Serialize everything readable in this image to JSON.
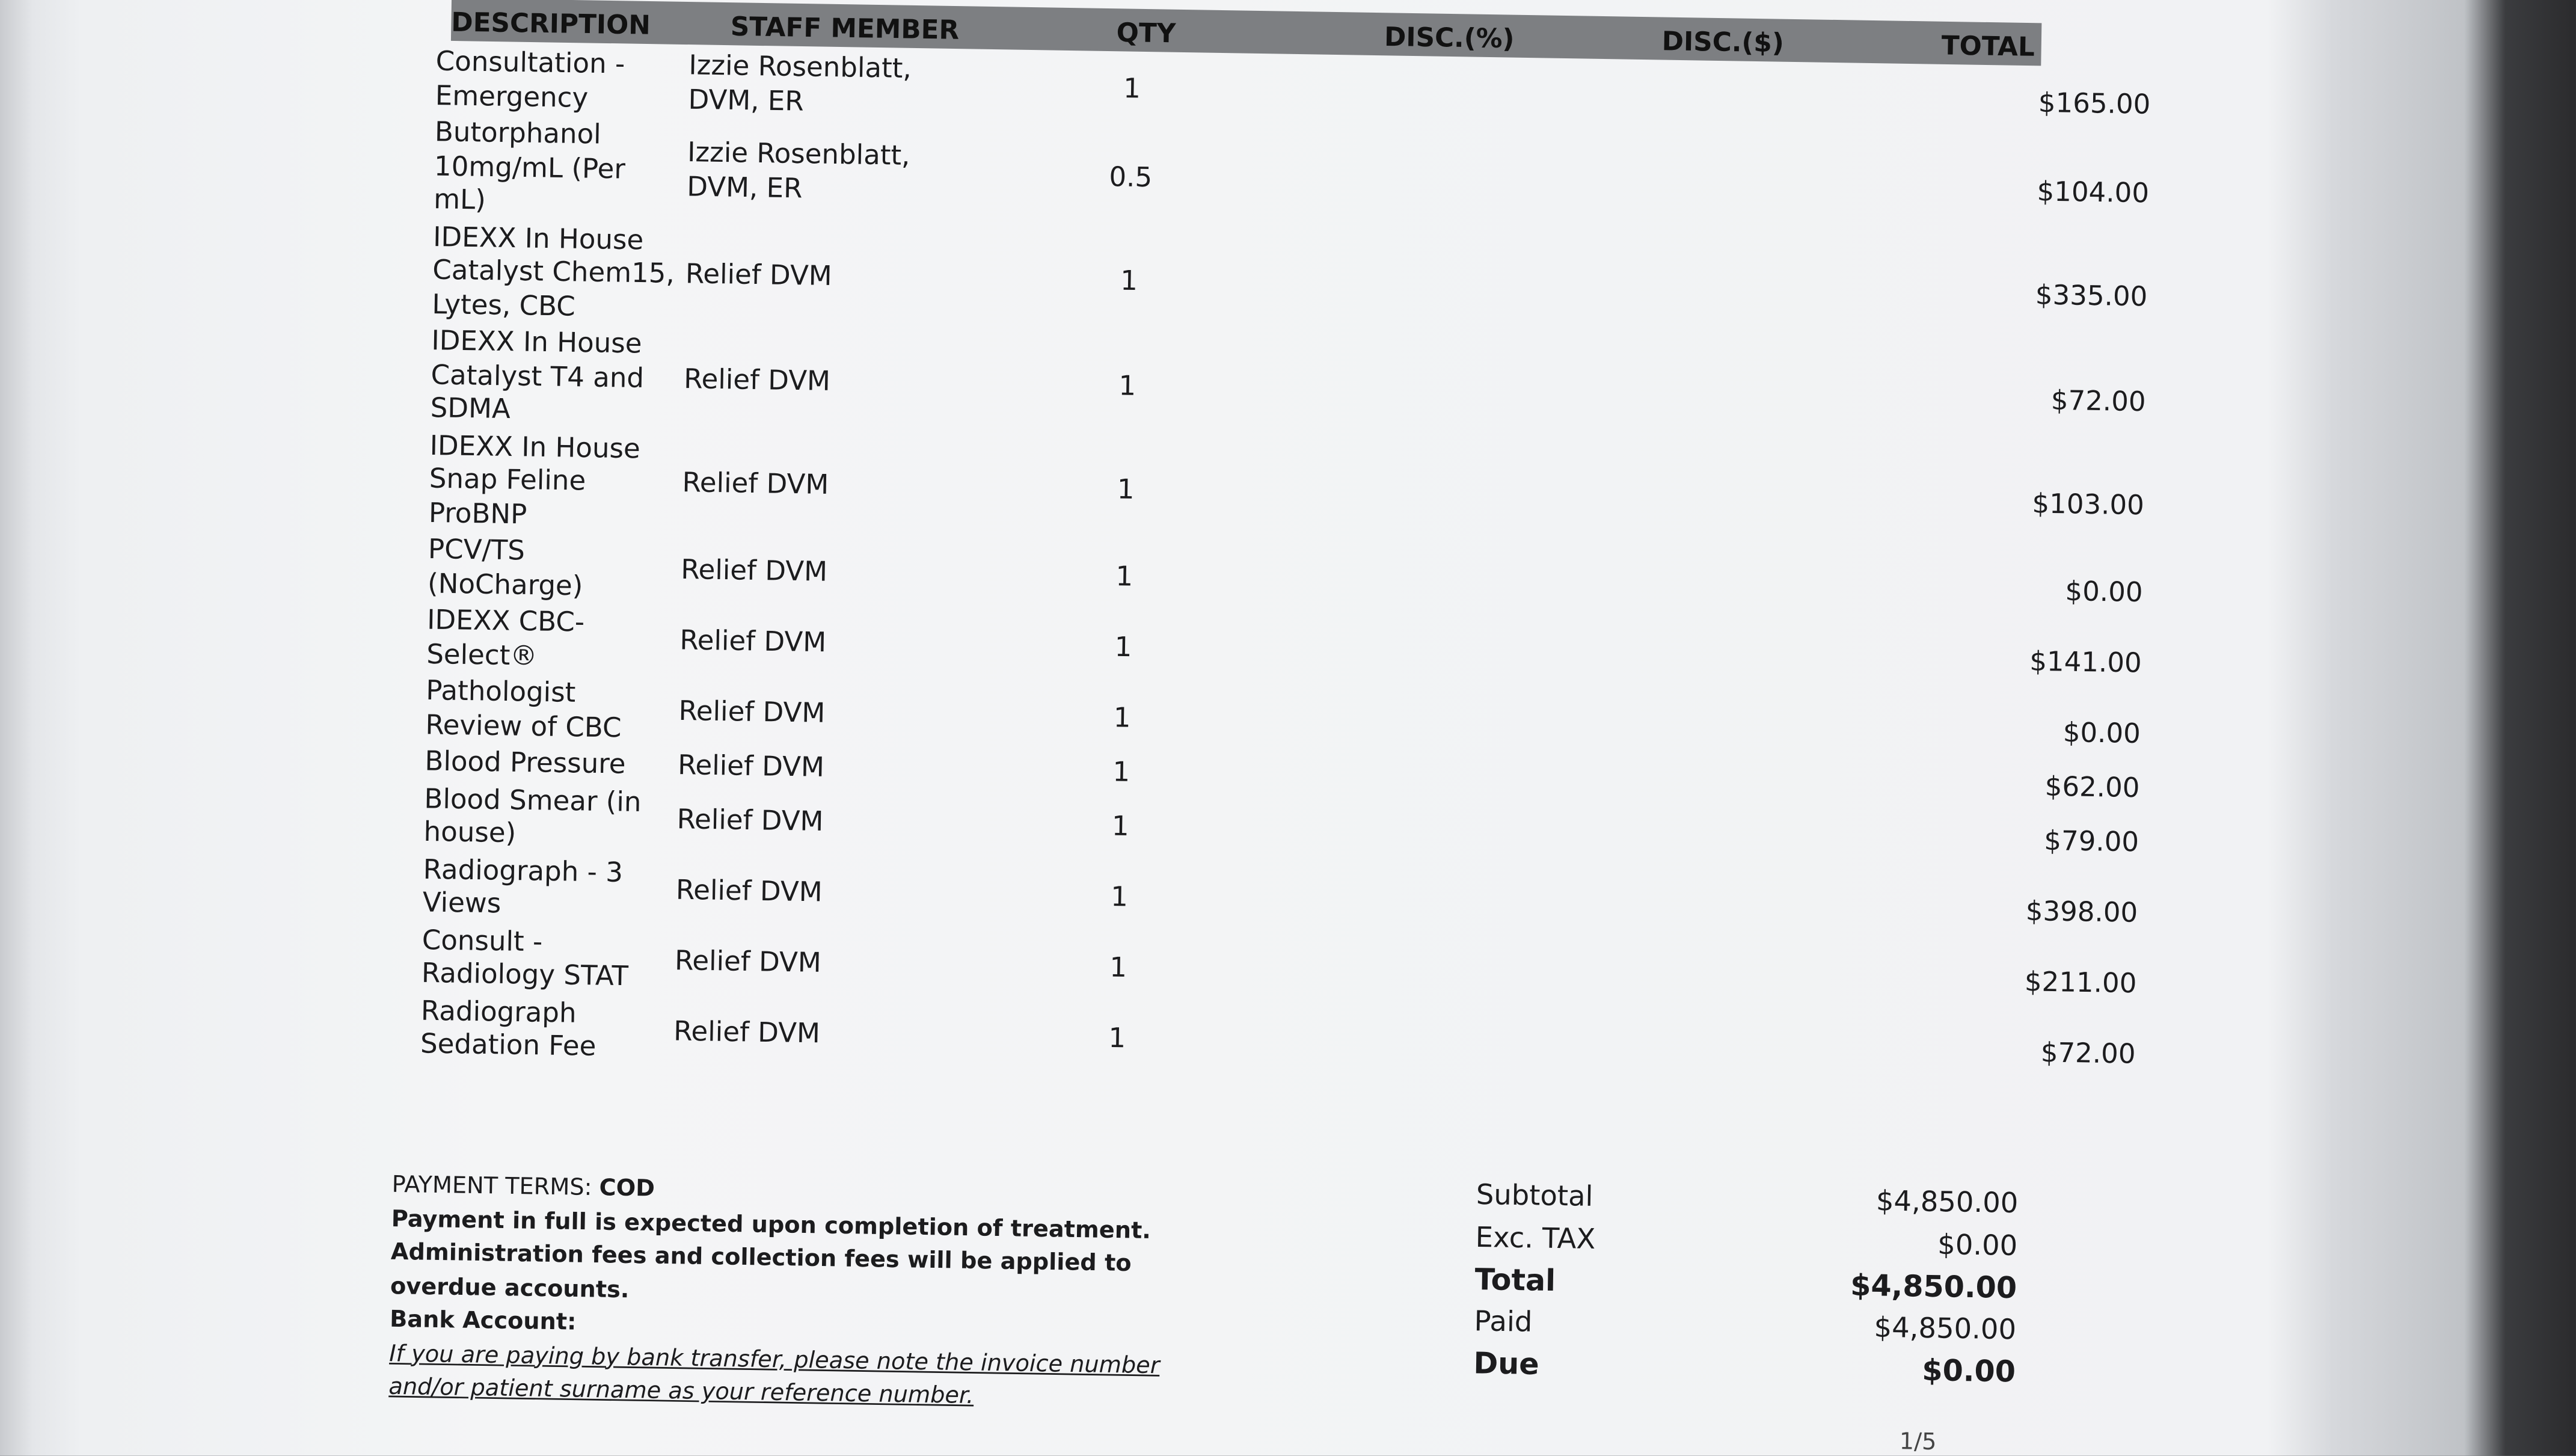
{
  "table": {
    "headers": [
      "DESCRIPTION",
      "STAFF MEMBER",
      "QTY",
      "DISC.(%)",
      "DISC.($)",
      "TOTAL"
    ],
    "rows": [
      [
        "Consultation - Emergency",
        "Izzie Rosenblatt, DVM, ER",
        "1",
        "$165.00"
      ],
      [
        "Butorphanol 10mg/mL (Per mL)",
        "Izzie Rosenblatt, DVM, ER",
        "0.5",
        "$104.00"
      ],
      [
        "IDEXX In House Catalyst Chem15, Lytes, CBC",
        "Relief DVM",
        "1",
        "$335.00"
      ],
      [
        "IDEXX In House Catalyst T4 and SDMA",
        "Relief DVM",
        "1",
        "$72.00"
      ],
      [
        "IDEXX In House Snap Feline ProBNP",
        "Relief DVM",
        "1",
        "$103.00"
      ],
      [
        "PCV/TS (NoCharge)",
        "Relief DVM",
        "1",
        "$0.00"
      ],
      [
        "IDEXX CBC-Select®",
        "Relief DVM",
        "1",
        "$141.00"
      ],
      [
        "Pathologist Review of CBC",
        "Relief DVM",
        "1",
        "$0.00"
      ],
      [
        "Blood Pressure",
        "Relief DVM",
        "1",
        "$62.00"
      ],
      [
        "Blood Smear (in house)",
        "Relief DVM",
        "1",
        "$79.00"
      ],
      [
        "Radiograph - 3 Views",
        "Relief DVM",
        "1",
        "$398.00"
      ],
      [
        "Consult - Radiology STAT",
        "Relief DVM",
        "1",
        "$211.00"
      ],
      [
        "Radiograph Sedation Fee",
        "Relief DVM",
        "1",
        "$72.00"
      ]
    ]
  },
  "terms": {
    "label": "PAYMENT TERMS:",
    "value": "COD",
    "note": "Payment in full is expected upon completion of treatment. Administration fees and collection fees will be applied to overdue accounts.",
    "bank_label": "Bank Account:",
    "bank_note": "If you are paying by bank transfer, please note the invoice number and/or patient surname as your reference number."
  },
  "totals": [
    [
      "Subtotal",
      "$4,850.00"
    ],
    [
      "Exc. TAX",
      "$0.00"
    ],
    [
      "Total",
      "$4,850.00"
    ],
    [
      "Paid",
      "$4,850.00"
    ],
    [
      "Due",
      "$0.00"
    ]
  ],
  "page_number": "1/5"
}
